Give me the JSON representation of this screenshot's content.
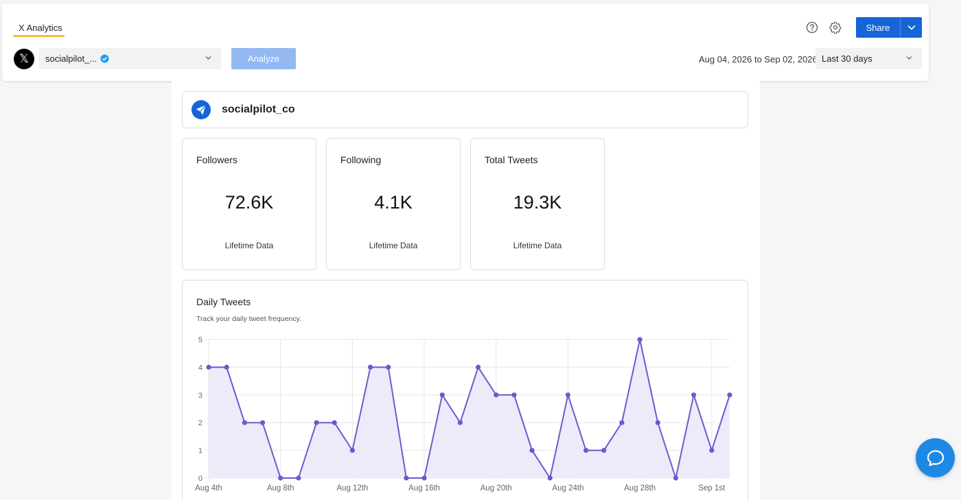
{
  "header": {
    "tab_label": "X Analytics",
    "share_label": "Share",
    "account_name": "socialpilot_...",
    "analyze_label": "Analyze",
    "date_range": "Aug 04, 2026 to Sep 02, 2026",
    "period": "Last 30 days"
  },
  "profile": {
    "name": "socialpilot_co"
  },
  "stats": [
    {
      "title": "Followers",
      "value": "72.6K",
      "sub": "Lifetime Data"
    },
    {
      "title": "Following",
      "value": "4.1K",
      "sub": "Lifetime Data"
    },
    {
      "title": "Total Tweets",
      "value": "19.3K",
      "sub": "Lifetime Data"
    }
  ],
  "colors": {
    "accent": "#1565d8",
    "line": "#6a5acd",
    "fill": "#ecebf9",
    "tab_underline": "#f2c12e"
  },
  "chart_data": {
    "type": "area",
    "title": "Daily Tweets",
    "subtitle": "Track your daily tweet frequency.",
    "ylim": [
      0,
      5
    ],
    "yticks": [
      0,
      1,
      2,
      3,
      4,
      5
    ],
    "x": [
      "Aug 4th",
      "Aug 5th",
      "Aug 6th",
      "Aug 7th",
      "Aug 8th",
      "Aug 9th",
      "Aug 10th",
      "Aug 11th",
      "Aug 12th",
      "Aug 13th",
      "Aug 14th",
      "Aug 15th",
      "Aug 16th",
      "Aug 17th",
      "Aug 18th",
      "Aug 19th",
      "Aug 20th",
      "Aug 21st",
      "Aug 22nd",
      "Aug 23rd",
      "Aug 24th",
      "Aug 25th",
      "Aug 26th",
      "Aug 27th",
      "Aug 28th",
      "Aug 29th",
      "Aug 30th",
      "Aug 31st",
      "Sep 1st",
      "Sep 2nd"
    ],
    "xtick_labels": [
      "Aug 4th",
      "Aug 8th",
      "Aug 12th",
      "Aug 16th",
      "Aug 20th",
      "Aug 24th",
      "Aug 28th",
      "Sep 1st"
    ],
    "values": [
      4,
      4,
      2,
      2,
      0,
      0,
      2,
      2,
      1,
      4,
      4,
      0,
      0,
      3,
      2,
      4,
      3,
      3,
      1,
      0,
      3,
      1,
      1,
      2,
      5,
      2,
      0,
      3,
      1,
      3
    ],
    "grid": true
  }
}
